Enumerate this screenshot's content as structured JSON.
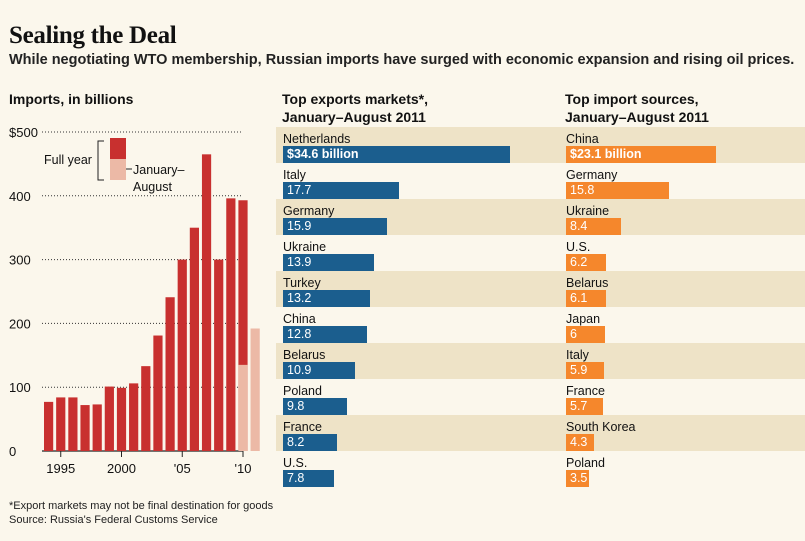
{
  "title": "Sealing the Deal",
  "subtitle": "While negotiating WTO membership, Russian imports have surged with economic expansion and rising oil prices.",
  "footnote": "*Export markets may not be final destination for goods",
  "source": "Source: Russia's Federal Customs Service",
  "colors": {
    "full_year": "#c8302f",
    "jan_aug": "#ecb9a6",
    "exports": "#1b5e8e",
    "imports": "#f5872c",
    "shade": "#eee3c7"
  },
  "chart_data": [
    {
      "type": "bar",
      "title": "Imports, in billions",
      "ylim": [
        0,
        500
      ],
      "y_ticks": [
        "$500",
        "400",
        "300",
        "200",
        "100",
        "0"
      ],
      "y_tick_values": [
        500,
        400,
        300,
        200,
        100,
        0
      ],
      "x_tick_labels": [
        "1995",
        "2000",
        "'05",
        "'10"
      ],
      "x_tick_years": [
        1995,
        2000,
        2005,
        2010
      ],
      "grid": true,
      "legend": {
        "full_year": "Full year",
        "jan_aug_line1": "January–",
        "jan_aug_line2": "August"
      },
      "categories": [
        1994,
        1995,
        1996,
        1997,
        1998,
        1999,
        2000,
        2001,
        2002,
        2003,
        2004,
        2005,
        2006,
        2007,
        2008,
        2009,
        2010,
        2011
      ],
      "series": [
        {
          "name": "Full year",
          "values": [
            77,
            84,
            84,
            72,
            73,
            101,
            99,
            106,
            133,
            181,
            241,
            300,
            350,
            465,
            300,
            396,
            393,
            null
          ]
        },
        {
          "name": "January–August",
          "values": [
            null,
            null,
            null,
            null,
            null,
            null,
            null,
            null,
            null,
            null,
            null,
            null,
            null,
            null,
            null,
            null,
            135,
            192
          ]
        }
      ]
    },
    {
      "type": "bar",
      "orientation": "horizontal",
      "title": "Top exports markets*, January–August 2011",
      "title_line1": "Top exports markets*,",
      "title_line2": "January–August 2011",
      "unit": "billion",
      "categories": [
        "Netherlands",
        "Italy",
        "Germany",
        "Ukraine",
        "Turkey",
        "China",
        "Belarus",
        "Poland",
        "France",
        "U.S."
      ],
      "values": [
        34.6,
        17.7,
        15.9,
        13.9,
        13.2,
        12.8,
        10.9,
        9.8,
        8.2,
        7.8
      ],
      "labels": [
        "$34.6 billion",
        "17.7",
        "15.9",
        "13.9",
        "13.2",
        "12.8",
        "10.9",
        "9.8",
        "8.2",
        "7.8"
      ]
    },
    {
      "type": "bar",
      "orientation": "horizontal",
      "title": "Top import sources, January–August 2011",
      "title_line1": "Top import sources,",
      "title_line2": "January–August 2011",
      "unit": "billion",
      "categories": [
        "China",
        "Germany",
        "Ukraine",
        "U.S.",
        "Belarus",
        "Japan",
        "Italy",
        "France",
        "South Korea",
        "Poland"
      ],
      "values": [
        23.1,
        15.8,
        8.4,
        6.2,
        6.1,
        6,
        5.9,
        5.7,
        4.3,
        3.5
      ],
      "labels": [
        "$23.1 billion",
        "15.8",
        "8.4",
        "6.2",
        "6.1",
        "6",
        "5.9",
        "5.7",
        "4.3",
        "3.5"
      ]
    }
  ]
}
